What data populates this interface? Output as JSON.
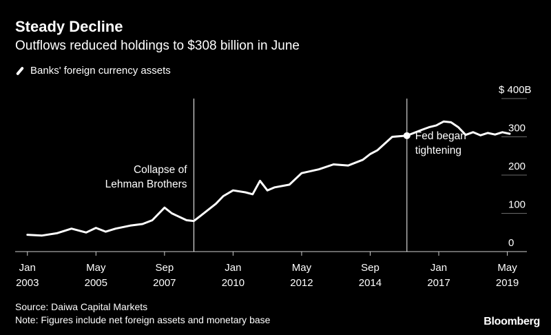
{
  "header": {
    "title": "Steady Decline",
    "subtitle": "Outflows reduced holdings to $308 billion in June"
  },
  "footer": {
    "source": "Source: Daiwa Capital Markets",
    "note": "Note: Figures include net foreign assets and monetary base",
    "brand": "Bloomberg"
  },
  "chart_data": {
    "type": "line",
    "series": [
      {
        "name": "Banks' foreign currency assets",
        "color": "#ffffff",
        "points": [
          [
            "2003-01",
            44
          ],
          [
            "2003-07",
            42
          ],
          [
            "2004-01",
            48
          ],
          [
            "2004-07",
            60
          ],
          [
            "2005-01",
            50
          ],
          [
            "2005-05",
            62
          ],
          [
            "2005-09",
            52
          ],
          [
            "2006-01",
            60
          ],
          [
            "2006-07",
            68
          ],
          [
            "2006-12",
            72
          ],
          [
            "2007-04",
            82
          ],
          [
            "2007-09",
            115
          ],
          [
            "2007-12",
            100
          ],
          [
            "2008-06",
            82
          ],
          [
            "2008-09",
            80
          ],
          [
            "2008-12",
            95
          ],
          [
            "2009-06",
            125
          ],
          [
            "2009-09",
            145
          ],
          [
            "2010-01",
            160
          ],
          [
            "2010-06",
            155
          ],
          [
            "2010-09",
            150
          ],
          [
            "2010-12",
            185
          ],
          [
            "2011-03",
            160
          ],
          [
            "2011-06",
            168
          ],
          [
            "2011-12",
            175
          ],
          [
            "2012-05",
            205
          ],
          [
            "2012-12",
            215
          ],
          [
            "2013-06",
            228
          ],
          [
            "2013-12",
            225
          ],
          [
            "2014-06",
            240
          ],
          [
            "2014-09",
            255
          ],
          [
            "2014-12",
            265
          ],
          [
            "2015-06",
            300
          ],
          [
            "2015-12",
            303
          ],
          [
            "2016-06",
            318
          ],
          [
            "2016-09",
            325
          ],
          [
            "2016-12",
            330
          ],
          [
            "2017-03",
            340
          ],
          [
            "2017-06",
            338
          ],
          [
            "2017-09",
            325
          ],
          [
            "2017-12",
            305
          ],
          [
            "2018-03",
            312
          ],
          [
            "2018-06",
            304
          ],
          [
            "2018-09",
            310
          ],
          [
            "2018-12",
            306
          ],
          [
            "2019-03",
            312
          ],
          [
            "2019-06",
            308
          ]
        ]
      }
    ],
    "x_ticks": [
      {
        "date": "2003-01",
        "month": "Jan",
        "year": "2003"
      },
      {
        "date": "2005-05",
        "month": "May",
        "year": "2005"
      },
      {
        "date": "2007-09",
        "month": "Sep",
        "year": "2007"
      },
      {
        "date": "2010-01",
        "month": "Jan",
        "year": "2010"
      },
      {
        "date": "2012-05",
        "month": "May",
        "year": "2012"
      },
      {
        "date": "2014-09",
        "month": "Sep",
        "year": "2014"
      },
      {
        "date": "2017-01",
        "month": "Jan",
        "year": "2017"
      },
      {
        "date": "2019-05",
        "month": "May",
        "year": "2019"
      }
    ],
    "y_ticks": [
      {
        "value": 0,
        "label": "0"
      },
      {
        "value": 100,
        "label": "100"
      },
      {
        "value": 200,
        "label": "200"
      },
      {
        "value": 300,
        "label": "300"
      },
      {
        "value": 400,
        "label": "$ 400B"
      }
    ],
    "xlim": [
      "2002-08",
      "2020-01"
    ],
    "ylim": [
      0,
      400
    ],
    "y_axis_side": "right",
    "annotations": [
      {
        "date": "2008-09",
        "lines": [
          "Collapse of",
          "Lehman Brothers"
        ],
        "label_side": "left"
      },
      {
        "date": "2015-12",
        "value": 303,
        "lines": [
          "Fed began",
          "tightening"
        ],
        "label_side": "right"
      }
    ],
    "grid": "horizontal"
  }
}
